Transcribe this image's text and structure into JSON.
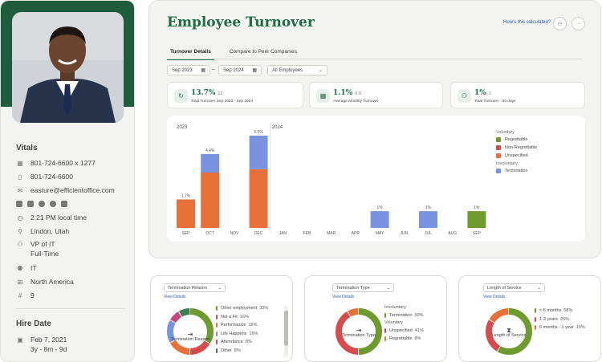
{
  "profile": {
    "vitals_title": "Vitals",
    "phone_ext": "801-724-6600 x 1277",
    "phone": "801-724-6600",
    "email": "easture@efficientoffice.com",
    "local_time": "2:21 PM local time",
    "location": "Lindon, Utah",
    "job_title": "VP of IT",
    "employment_type": "Full-Time",
    "department": "IT",
    "region": "North America",
    "number": "9",
    "hire_title": "Hire Date",
    "hire_date": "Feb 7, 2021",
    "tenure": "3y - 8m - 9d"
  },
  "header": {
    "title": "Employee Turnover",
    "how_link": "How's this calculated?"
  },
  "tabs": [
    {
      "label": "Turnover Details",
      "active": true
    },
    {
      "label": "Compare to Peer Companies",
      "active": false
    }
  ],
  "filters": {
    "start_date": "Sep 2023",
    "end_date": "Sep 2024",
    "separator": "–",
    "population": "All Employees"
  },
  "stats": [
    {
      "value": "13.7%",
      "extra": "12",
      "label": "Total Turnover Sep 2023 - Sep 2024",
      "icon": "refresh-icon"
    },
    {
      "value": "1.1%",
      "extra": "0.9",
      "label": "Average Monthly Turnover",
      "icon": "calendar-icon"
    },
    {
      "value": "1%",
      "extra": "1",
      "label": "Total Turnover - 30 days",
      "icon": "users-icon"
    }
  ],
  "chart_data": {
    "type": "bar",
    "stacked": true,
    "year_labels": [
      "2023",
      "2024"
    ],
    "categories": [
      "SEP",
      "OCT",
      "NOV",
      "DEC",
      "JAN",
      "FEB",
      "MAR",
      "APR",
      "MAY",
      "JUN",
      "JUL",
      "AUG",
      "SEP"
    ],
    "totals_labels": [
      "1.7%",
      "4.4%",
      "",
      "5.5%",
      "",
      "",
      "",
      "",
      "1%",
      "",
      "1%",
      "",
      "1%"
    ],
    "series": [
      {
        "name": "Regrettable",
        "color": "#6e9a2e",
        "values": [
          0,
          0,
          0,
          0,
          0,
          0,
          0,
          0,
          0,
          0,
          0,
          0,
          1.0
        ]
      },
      {
        "name": "Non-Regrettable",
        "color": "#d64b4b",
        "values": [
          0,
          0,
          0,
          0,
          0,
          0,
          0,
          0,
          0,
          0,
          0,
          0,
          0
        ]
      },
      {
        "name": "Unspecified",
        "color": "#e8713a",
        "values": [
          1.7,
          3.3,
          0,
          3.5,
          0,
          0,
          0,
          0,
          0,
          0,
          0,
          0,
          0
        ]
      },
      {
        "name": "Termination",
        "color": "#7a93e0",
        "values": [
          0,
          1.1,
          0,
          2.0,
          0,
          0,
          0,
          0,
          1.0,
          0,
          1.0,
          0,
          0
        ]
      }
    ],
    "legend_groups": [
      {
        "label": "Voluntary",
        "items": [
          "Regrettable",
          "Non-Regrettable",
          "Unspecified"
        ]
      },
      {
        "label": "Involuntary",
        "items": [
          "Termination"
        ]
      }
    ],
    "ylim": [
      0,
      5.5
    ]
  },
  "donuts": [
    {
      "select": "Termination Reason",
      "view_details": "View Details",
      "center_label": "Termination Reason",
      "slices": [
        {
          "label": "Other employment",
          "pct": "33%",
          "value": 33,
          "color": "#6e9a2e"
        },
        {
          "label": "Not a Fit",
          "pct": "16%",
          "value": 16,
          "color": "#d64b4b"
        },
        {
          "label": "Performance",
          "pct": "16%",
          "value": 16,
          "color": "#e8713a"
        },
        {
          "label": "Life Happens",
          "pct": "16%",
          "value": 16,
          "color": "#7a93e0"
        },
        {
          "label": "Attendance",
          "pct": "8%",
          "value": 8,
          "color": "#c9477f"
        },
        {
          "label": "Other",
          "pct": "8%",
          "value": 8,
          "color": "#3d7f4f"
        }
      ]
    },
    {
      "select": "Termination Type",
      "view_details": "View Details",
      "center_label": "Termination Type",
      "groups": [
        "Involuntary",
        "Voluntary"
      ],
      "slices": [
        {
          "group": "Involuntary",
          "label": "Termination",
          "pct": "50%",
          "value": 50,
          "color": "#6e9a2e"
        },
        {
          "group": "Voluntary",
          "label": "Unspecified",
          "pct": "41%",
          "value": 41,
          "color": "#d64b4b"
        },
        {
          "group": "Voluntary",
          "label": "Regrettable",
          "pct": "8%",
          "value": 8,
          "color": "#e8713a"
        }
      ]
    },
    {
      "select": "Length of Service",
      "view_details": "View Details",
      "center_label": "Length of Service",
      "slices": [
        {
          "label": "< 6 months",
          "pct": "58%",
          "value": 58,
          "color": "#6e9a2e"
        },
        {
          "label": "1-3 years",
          "pct": "25%",
          "value": 25,
          "color": "#d64b4b"
        },
        {
          "label": "6 months - 1 year",
          "pct": "16%",
          "value": 16,
          "color": "#e8713a"
        }
      ]
    }
  ]
}
